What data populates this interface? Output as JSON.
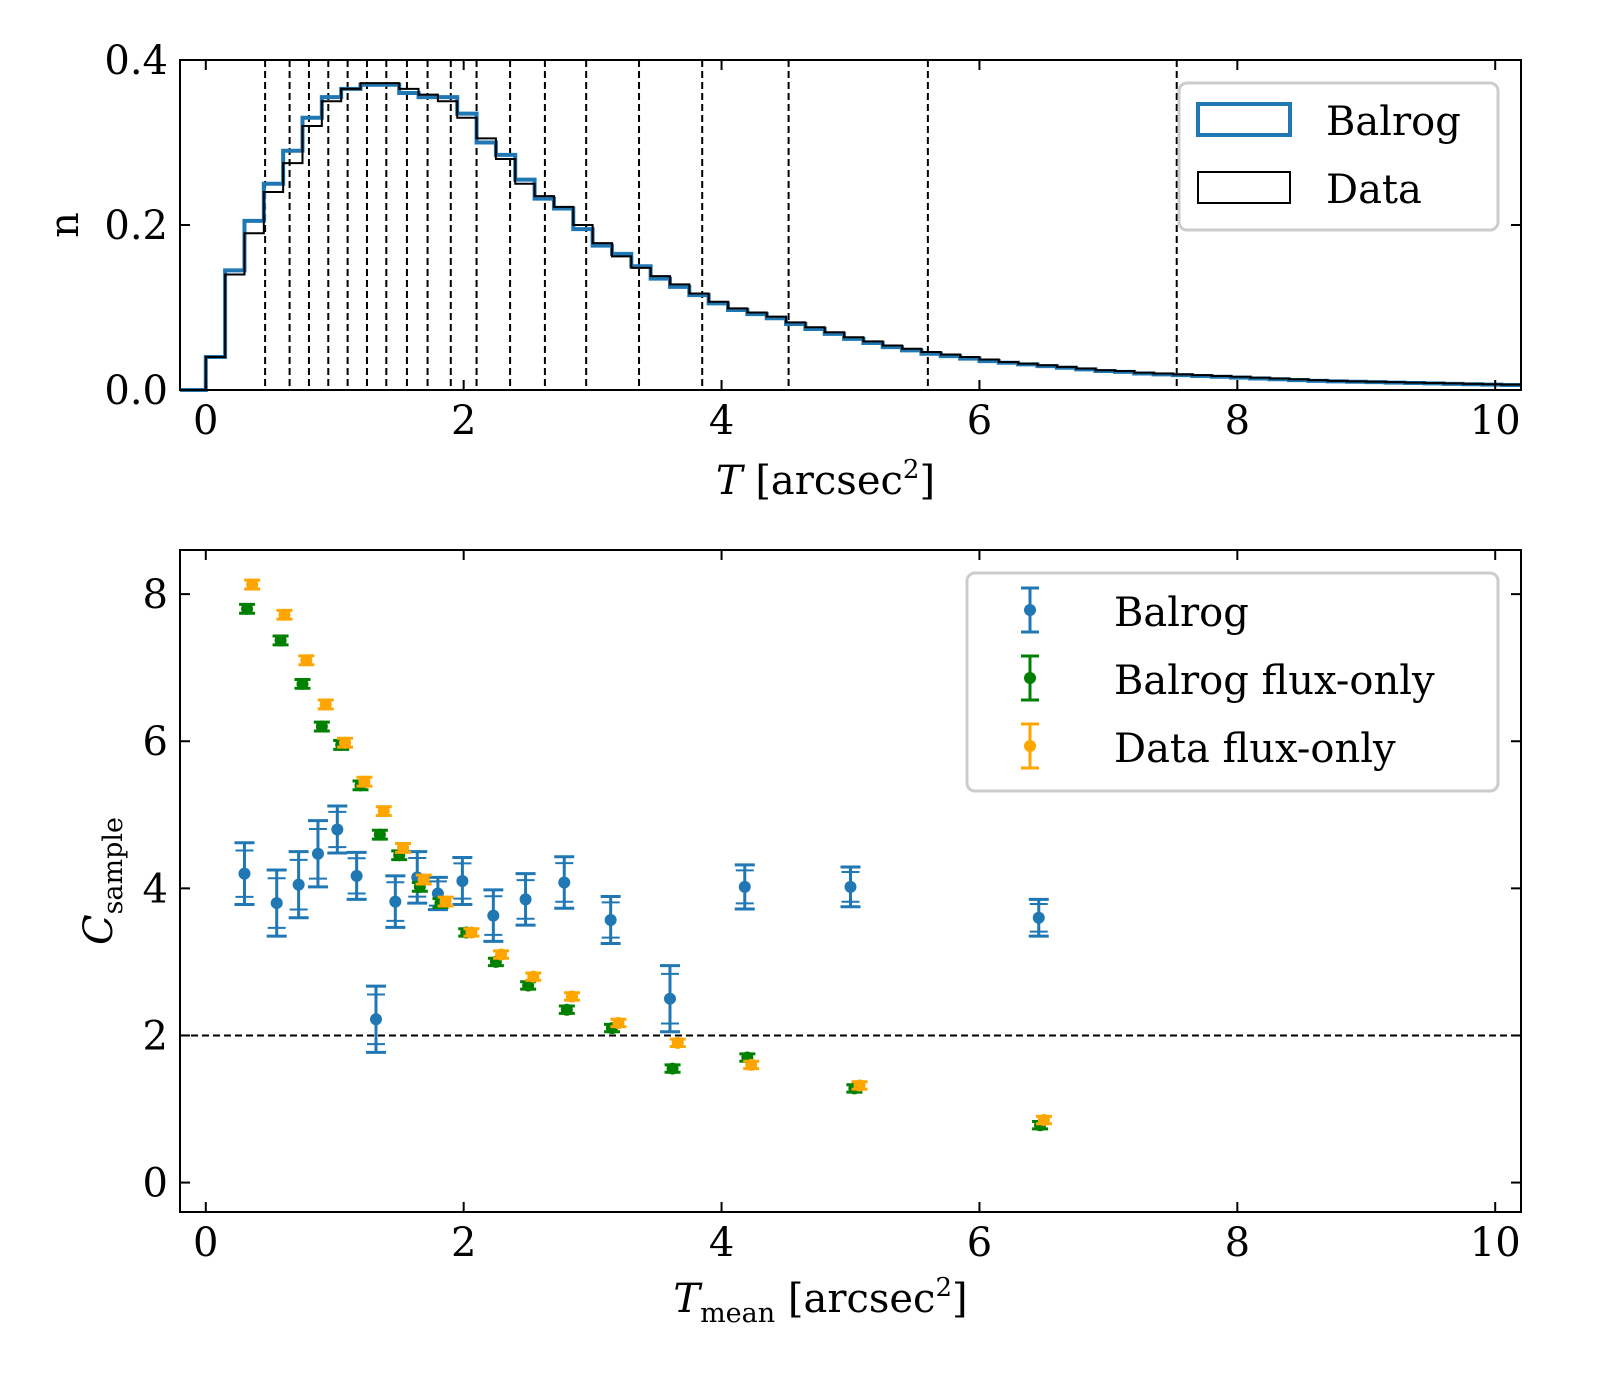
{
  "chart_data": [
    {
      "type": "histogram",
      "xlabel_var": "T",
      "xlabel_unit": " [arcsec",
      "xlabel_sup": "2",
      "xlabel_close": "]",
      "ylabel": "n",
      "xlim": [
        -0.2,
        10.2
      ],
      "ylim": [
        0,
        0.4
      ],
      "xticks": [
        0,
        2,
        4,
        6,
        8,
        10
      ],
      "xtick_labels": [
        "0",
        "2",
        "4",
        "6",
        "8",
        "10"
      ],
      "yticks": [
        0.0,
        0.2,
        0.4
      ],
      "ytick_labels": [
        "0.0",
        "0.2",
        "0.4"
      ],
      "legend_position": "top-right",
      "bin_edges": [
        0.0,
        0.15,
        0.3,
        0.45,
        0.6,
        0.75,
        0.9,
        1.05,
        1.2,
        1.35,
        1.5,
        1.65,
        1.8,
        1.95,
        2.1,
        2.25,
        2.4,
        2.55,
        2.7,
        2.85,
        3.0,
        3.15,
        3.3,
        3.45,
        3.6,
        3.75,
        3.9,
        4.05,
        4.2,
        4.35,
        4.5,
        4.65,
        4.8,
        4.95,
        5.1,
        5.25,
        5.4,
        5.55,
        5.7,
        5.85,
        6.0,
        6.15,
        6.3,
        6.45,
        6.6,
        6.75,
        6.9,
        7.05,
        7.2,
        7.35,
        7.5,
        7.65,
        7.8,
        7.95,
        8.1,
        8.25,
        8.4,
        8.55,
        8.7,
        8.85,
        9.0,
        9.15,
        9.3,
        9.45,
        9.6,
        9.75,
        9.9,
        10.05,
        10.2
      ],
      "series": [
        {
          "name": "Balrog",
          "color": "#1f77b4",
          "values": [
            0.04,
            0.145,
            0.205,
            0.25,
            0.29,
            0.33,
            0.355,
            0.365,
            0.37,
            0.37,
            0.36,
            0.355,
            0.355,
            0.335,
            0.3,
            0.285,
            0.255,
            0.232,
            0.22,
            0.195,
            0.175,
            0.165,
            0.15,
            0.135,
            0.125,
            0.115,
            0.105,
            0.097,
            0.092,
            0.087,
            0.08,
            0.074,
            0.068,
            0.062,
            0.057,
            0.052,
            0.048,
            0.044,
            0.041,
            0.038,
            0.035,
            0.033,
            0.031,
            0.029,
            0.027,
            0.025,
            0.023,
            0.022,
            0.02,
            0.019,
            0.018,
            0.017,
            0.016,
            0.015,
            0.014,
            0.013,
            0.012,
            0.011,
            0.0105,
            0.01,
            0.0095,
            0.009,
            0.0085,
            0.008,
            0.0075,
            0.007,
            0.0065,
            0.006
          ]
        },
        {
          "name": "Data",
          "color": "#000000",
          "values": [
            0.04,
            0.14,
            0.19,
            0.24,
            0.275,
            0.32,
            0.35,
            0.365,
            0.372,
            0.372,
            0.365,
            0.358,
            0.35,
            0.33,
            0.305,
            0.28,
            0.25,
            0.235,
            0.222,
            0.2,
            0.178,
            0.162,
            0.148,
            0.138,
            0.128,
            0.117,
            0.107,
            0.099,
            0.094,
            0.089,
            0.082,
            0.076,
            0.07,
            0.064,
            0.059,
            0.054,
            0.05,
            0.046,
            0.043,
            0.04,
            0.037,
            0.034,
            0.032,
            0.03,
            0.028,
            0.026,
            0.024,
            0.023,
            0.021,
            0.02,
            0.019,
            0.018,
            0.017,
            0.016,
            0.015,
            0.014,
            0.013,
            0.012,
            0.011,
            0.0105,
            0.01,
            0.0095,
            0.009,
            0.0085,
            0.008,
            0.0075,
            0.007,
            0.0065
          ]
        }
      ],
      "vlines": [
        0.46,
        0.65,
        0.8,
        0.95,
        1.1,
        1.25,
        1.4,
        1.56,
        1.72,
        1.9,
        2.1,
        2.36,
        2.63,
        2.95,
        3.36,
        3.85,
        4.52,
        5.6,
        7.53
      ]
    },
    {
      "type": "scatter",
      "xlabel_var": "T",
      "xlabel_sub": "mean",
      "xlabel_unit": " [arcsec",
      "xlabel_sup": "2",
      "xlabel_close": "]",
      "ylabel_var": "C",
      "ylabel_sub": "sample",
      "xlim": [
        -0.2,
        10.2
      ],
      "ylim": [
        -0.4,
        8.6
      ],
      "xticks": [
        0,
        2,
        4,
        6,
        8,
        10
      ],
      "xtick_labels": [
        "0",
        "2",
        "4",
        "6",
        "8",
        "10"
      ],
      "yticks": [
        0,
        2,
        4,
        6,
        8
      ],
      "ytick_labels": [
        "0",
        "2",
        "4",
        "6",
        "8"
      ],
      "hline": 2,
      "legend_position": "top-right",
      "series": [
        {
          "name": "Balrog",
          "color": "#1f77b4",
          "x": [
            0.3,
            0.55,
            0.72,
            0.87,
            1.02,
            1.17,
            1.32,
            1.47,
            1.64,
            1.8,
            1.99,
            2.23,
            2.48,
            2.78,
            3.14,
            3.6,
            4.18,
            5.0,
            6.46
          ],
          "y": [
            4.2,
            3.8,
            4.05,
            4.47,
            4.8,
            4.17,
            2.22,
            3.82,
            4.15,
            3.93,
            4.1,
            3.63,
            3.85,
            4.08,
            3.57,
            2.5,
            4.02,
            4.02,
            3.6
          ],
          "err": [
            0.42,
            0.45,
            0.45,
            0.45,
            0.32,
            0.32,
            0.45,
            0.35,
            0.35,
            0.22,
            0.32,
            0.35,
            0.35,
            0.35,
            0.32,
            0.45,
            0.3,
            0.27,
            0.25
          ]
        },
        {
          "name": "Balrog flux-only",
          "color": "#008000",
          "x": [
            0.32,
            0.58,
            0.75,
            0.9,
            1.05,
            1.2,
            1.35,
            1.5,
            1.66,
            1.82,
            2.02,
            2.25,
            2.5,
            2.8,
            3.15,
            3.62,
            4.2,
            5.03,
            6.47
          ],
          "y": [
            7.8,
            7.37,
            6.78,
            6.2,
            5.95,
            5.4,
            4.73,
            4.45,
            4.02,
            3.8,
            3.4,
            3.0,
            2.68,
            2.35,
            2.1,
            1.55,
            1.7,
            1.28,
            0.78
          ],
          "err": [
            0.06,
            0.06,
            0.06,
            0.06,
            0.06,
            0.06,
            0.06,
            0.06,
            0.06,
            0.06,
            0.05,
            0.05,
            0.05,
            0.05,
            0.05,
            0.05,
            0.05,
            0.05,
            0.05
          ]
        },
        {
          "name": "Data flux-only",
          "color": "#ffa500",
          "x": [
            0.36,
            0.61,
            0.78,
            0.93,
            1.08,
            1.23,
            1.38,
            1.53,
            1.69,
            1.86,
            2.06,
            2.29,
            2.54,
            2.84,
            3.2,
            3.66,
            4.23,
            5.07,
            6.5
          ],
          "y": [
            8.13,
            7.72,
            7.1,
            6.5,
            5.98,
            5.45,
            5.05,
            4.55,
            4.12,
            3.82,
            3.4,
            3.1,
            2.8,
            2.53,
            2.17,
            1.9,
            1.6,
            1.32,
            0.85
          ],
          "err": [
            0.06,
            0.06,
            0.06,
            0.06,
            0.06,
            0.06,
            0.06,
            0.06,
            0.06,
            0.06,
            0.05,
            0.05,
            0.05,
            0.05,
            0.05,
            0.05,
            0.05,
            0.05,
            0.05
          ]
        }
      ]
    }
  ]
}
